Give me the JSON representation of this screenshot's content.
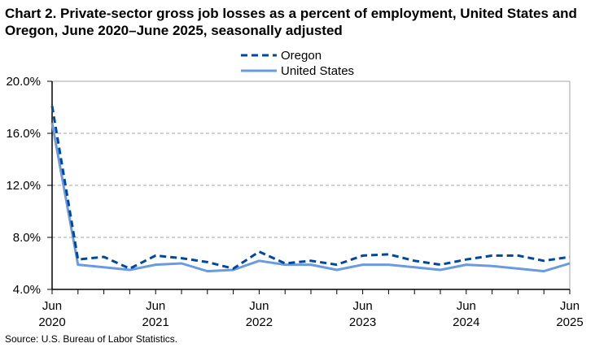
{
  "chart_data": {
    "type": "line",
    "title": "Chart 2. Private-sector gross job losses as a percent of employment, United States and Oregon, June 2020–June 2025, seasonally adjusted",
    "source": "Source: U.S. Bureau of Labor Statistics.",
    "ylim": [
      4,
      20
    ],
    "yticks": [
      "20.0%",
      "16.0%",
      "12.0%",
      "8.0%",
      "4.0%"
    ],
    "ytick_values": [
      20,
      16,
      12,
      8,
      4
    ],
    "xticks": [
      {
        "top": "Jun",
        "bottom": "2020"
      },
      {
        "top": "Jun",
        "bottom": "2021"
      },
      {
        "top": "Jun",
        "bottom": "2022"
      },
      {
        "top": "Jun",
        "bottom": "2023"
      },
      {
        "top": "Jun",
        "bottom": "2024"
      },
      {
        "top": "Jun",
        "bottom": "2025"
      }
    ],
    "x_period": "quarterly, June 2020 to June 2025",
    "grid": "horizontal dashed",
    "legend": "top-center",
    "series": [
      {
        "name": "Oregon",
        "color": "#0047a0",
        "style": "dashed",
        "values": [
          18.1,
          6.3,
          6.5,
          5.6,
          6.6,
          6.4,
          6.1,
          5.6,
          6.9,
          6.0,
          6.2,
          5.9,
          6.6,
          6.7,
          6.2,
          5.9,
          6.3,
          6.6,
          6.6,
          6.2,
          6.5
        ]
      },
      {
        "name": "United States",
        "color": "#6a9ae0",
        "style": "solid",
        "values": [
          16.8,
          5.9,
          5.7,
          5.5,
          5.9,
          6.0,
          5.4,
          5.5,
          6.2,
          5.9,
          5.9,
          5.5,
          5.9,
          5.9,
          5.7,
          5.5,
          5.9,
          5.8,
          5.6,
          5.4,
          6.0
        ]
      }
    ]
  }
}
